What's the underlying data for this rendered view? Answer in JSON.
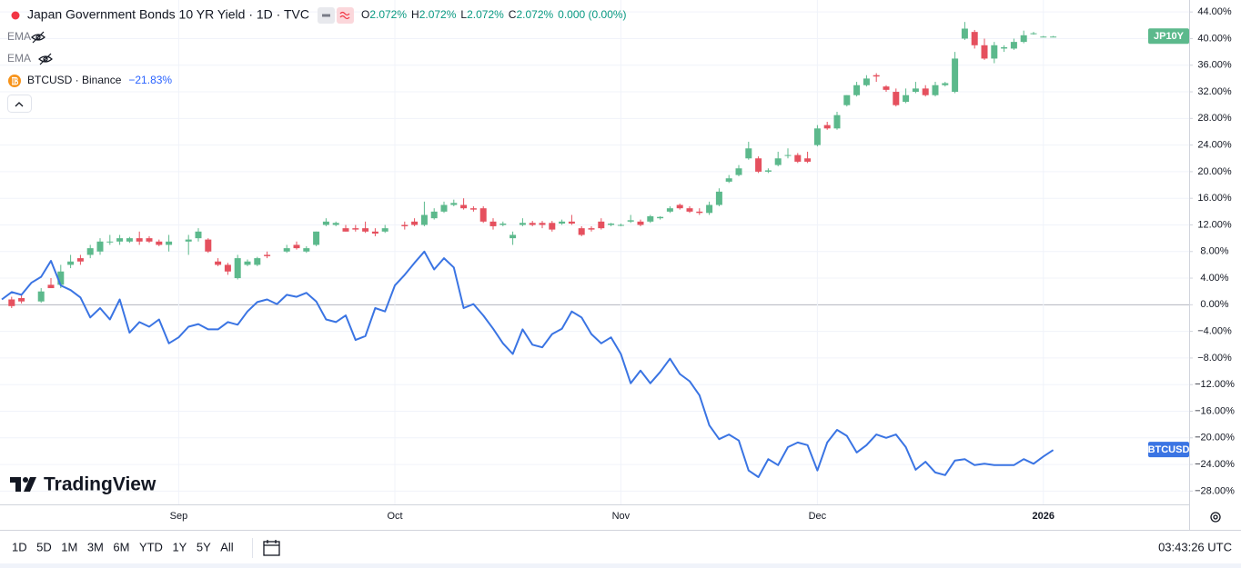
{
  "header": {
    "title": "Japan Government Bonds 10 YR Yield · 1D · TVC",
    "ohlc": [
      {
        "key": "O",
        "value": "2.072%"
      },
      {
        "key": "H",
        "value": "2.072%"
      },
      {
        "key": "L",
        "value": "2.072%"
      },
      {
        "key": "C",
        "value": "2.072%"
      }
    ],
    "change": "0.000 (0.00%)",
    "indicators": [
      "EMA",
      "EMA"
    ],
    "compare": "BTCUSD · Binance",
    "compare_change": "−21.83%"
  },
  "logo": "TradingView",
  "toolbar": {
    "ranges": [
      "1D",
      "5D",
      "1M",
      "3M",
      "6M",
      "YTD",
      "1Y",
      "5Y",
      "All"
    ],
    "time": "03:43:26 UTC"
  },
  "chart_data": {
    "type": "candlestick",
    "categories": [
      null,
      null,
      null,
      null,
      null,
      null,
      null,
      null,
      null,
      null,
      null,
      null,
      null,
      null,
      null,
      null,
      null,
      null,
      "Sep",
      null,
      null,
      null,
      null,
      null,
      null,
      null,
      null,
      null,
      null,
      null,
      null,
      null,
      null,
      null,
      null,
      null,
      null,
      null,
      null,
      null,
      "Oct",
      null,
      null,
      null,
      null,
      null,
      null,
      null,
      null,
      null,
      null,
      null,
      null,
      null,
      null,
      null,
      null,
      null,
      null,
      null,
      null,
      null,
      null,
      "Nov",
      null,
      null,
      null,
      null,
      null,
      null,
      null,
      null,
      null,
      null,
      null,
      null,
      null,
      null,
      null,
      null,
      null,
      null,
      null,
      "Dec",
      null,
      null,
      null,
      null,
      null,
      null,
      null,
      null,
      null,
      null,
      null,
      null,
      null,
      null,
      null,
      null,
      null,
      null,
      null,
      null,
      null,
      null,
      "2026",
      null
    ],
    "series": [
      {
        "name": "JP10Y",
        "type": "candlestick",
        "up_color": "#5cb98c",
        "down_color": "#e5505e",
        "label_color": "#5cb98c",
        "open": [
          null,
          0.8,
          1,
          null,
          0.5,
          3,
          3,
          6,
          7,
          7.5,
          8,
          9.5,
          9.5,
          9.5,
          10,
          10,
          9.5,
          9,
          null,
          9.5,
          10,
          9.8,
          6.5,
          6,
          4,
          6,
          6,
          7.5,
          null,
          8,
          9,
          8,
          9,
          12,
          12,
          11.5,
          11.5,
          11.5,
          11,
          11,
          null,
          12,
          12.5,
          12,
          13,
          14,
          15,
          15,
          14.5,
          14.5,
          12.5,
          12,
          10,
          12,
          12.3,
          12.3,
          12.3,
          12.2,
          12.5,
          11.5,
          11.5,
          12.5,
          12,
          12,
          12.5,
          12.5,
          12.5,
          13,
          14,
          15,
          14.5,
          14,
          13.8,
          15,
          18.5,
          19.5,
          22,
          22,
          20,
          21,
          22.5,
          22.5,
          22,
          24,
          27,
          26.5,
          30,
          31.5,
          33,
          34.5,
          32.8,
          32,
          30.5,
          32,
          32.5,
          31.5,
          33,
          32,
          40,
          41,
          39,
          37,
          38.5,
          38.5,
          39.5,
          40.8,
          40.3,
          40.3
        ],
        "high": [
          null,
          1.2,
          1.5,
          null,
          2.5,
          4,
          6,
          7.5,
          7.5,
          9,
          10,
          10.5,
          10.5,
          10.2,
          11,
          10.3,
          9.8,
          10.5,
          null,
          10.5,
          11.5,
          10,
          7,
          6.3,
          7.5,
          6.8,
          7.2,
          8,
          null,
          9,
          9.5,
          8.8,
          11,
          13,
          12.5,
          12,
          12,
          12.5,
          11.5,
          12,
          null,
          12.5,
          13,
          15.5,
          14.5,
          15.5,
          15.8,
          16,
          14.8,
          14.8,
          13,
          12.5,
          11,
          13,
          12.6,
          12.6,
          12.6,
          12.8,
          13.5,
          11.8,
          11.8,
          13,
          12.3,
          12.2,
          13.5,
          12.8,
          13.5,
          13.3,
          14.8,
          15.2,
          14.8,
          14.5,
          15.5,
          17.5,
          19.5,
          21,
          24.5,
          22.3,
          20.5,
          23,
          23.5,
          22.8,
          23,
          27,
          27.5,
          29,
          31.5,
          33.5,
          34.5,
          34.8,
          33,
          32.5,
          32.5,
          33.5,
          33,
          33.5,
          33.5,
          38,
          42.5,
          41.3,
          40,
          39.5,
          39,
          40,
          41.2,
          41,
          40.4,
          40.4
        ],
        "low": [
          null,
          -0.5,
          0.2,
          null,
          0.3,
          2.5,
          2.5,
          5.5,
          6,
          7,
          7.5,
          9,
          9,
          9.3,
          9,
          9.3,
          8.8,
          8,
          null,
          7.5,
          9.5,
          7.8,
          5.8,
          4.5,
          3.8,
          5.8,
          5.8,
          7,
          null,
          7.8,
          8.3,
          7.8,
          8.8,
          11.8,
          11.8,
          11,
          11,
          10.8,
          10.3,
          10.8,
          null,
          11.3,
          11.8,
          11.8,
          12.8,
          13.8,
          14.8,
          14.3,
          14,
          12.3,
          11.3,
          11.8,
          9,
          11.8,
          11.8,
          11.5,
          11,
          12,
          12,
          10.3,
          11,
          11.3,
          11.8,
          11.8,
          12.3,
          11.8,
          12.3,
          12.8,
          13.8,
          14.3,
          13.8,
          13.5,
          13.5,
          14.8,
          18.3,
          19.3,
          21.8,
          19.8,
          19.8,
          20.8,
          22,
          21.3,
          21.3,
          23.8,
          26.3,
          26.3,
          29.8,
          31.3,
          32.8,
          33.5,
          32,
          29.8,
          30.3,
          31.8,
          31.3,
          31.3,
          32.8,
          31.8,
          39.8,
          38.5,
          36.8,
          36.3,
          38,
          38.3,
          39.3,
          40.6,
          40.2,
          40.2
        ],
        "close": [
          null,
          -0.2,
          0.5,
          null,
          2,
          2.5,
          5,
          6.5,
          6.5,
          8.5,
          9.5,
          9.5,
          10,
          10,
          9.5,
          9.5,
          9,
          9.5,
          null,
          9.8,
          11,
          8,
          6,
          5,
          7,
          6.5,
          7,
          7.3,
          null,
          8.5,
          8.5,
          8.5,
          11,
          12.5,
          12.3,
          11,
          11.3,
          11,
          10.7,
          11.5,
          null,
          11.8,
          12,
          13.5,
          14,
          15,
          15.3,
          14.5,
          14.3,
          12.5,
          11.8,
          12.2,
          10.5,
          12.3,
          12,
          12,
          11.3,
          12.5,
          12.2,
          10.5,
          11.3,
          11.5,
          12.2,
          12,
          12.7,
          12,
          13.3,
          13.2,
          14.5,
          14.5,
          14,
          13.8,
          15,
          17,
          19,
          20.5,
          23.5,
          20,
          20.2,
          22,
          22.5,
          21.5,
          21.5,
          26.5,
          26.5,
          28.5,
          31.5,
          33,
          34,
          34.3,
          32.3,
          30,
          31.5,
          32.5,
          31.5,
          33,
          33.3,
          37,
          41.5,
          39,
          37,
          39,
          38.7,
          39.5,
          40.5,
          40.8,
          40.3,
          40.3
        ]
      },
      {
        "name": "BTCUSD",
        "type": "line",
        "color": "#3a74e3",
        "values": [
          0.8,
          1.9,
          1.5,
          3.3,
          4.2,
          6.6,
          2.9,
          2.2,
          1.1,
          -1.9,
          -0.5,
          -2.2,
          0.8,
          -4.2,
          -2.6,
          -3.3,
          -2.2,
          -5.8,
          -4.9,
          -3.3,
          -2.9,
          -3.7,
          -3.7,
          -2.6,
          -3.0,
          -1.0,
          0.4,
          0.8,
          0.1,
          1.5,
          1.2,
          1.8,
          0.5,
          -2.2,
          -2.6,
          -1.6,
          -5.3,
          -4.7,
          -0.5,
          -1.0,
          2.9,
          4.5,
          6.3,
          8.0,
          5.3,
          7.0,
          5.6,
          -0.5,
          0.1,
          -1.6,
          -3.6,
          -5.8,
          -7.4,
          -3.7,
          -6.0,
          -6.4,
          -4.4,
          -3.6,
          -1.0,
          -1.9,
          -4.4,
          -5.8,
          -4.9,
          -7.4,
          -11.8,
          -9.9,
          -11.8,
          -10.1,
          -8.1,
          -10.4,
          -11.5,
          -13.6,
          -18.1,
          -20.2,
          -19.5,
          -20.4,
          -24.9,
          -25.9,
          -23.2,
          -24.1,
          -21.4,
          -20.7,
          -21.1,
          -24.9,
          -20.7,
          -18.8,
          -19.7,
          -22.2,
          -21.1,
          -19.5,
          -20.0,
          -19.5,
          -21.4,
          -24.8,
          -23.6,
          -25.2,
          -25.6,
          -23.4,
          -23.2,
          -24.1,
          -23.9,
          -24.1,
          -24.1,
          -24.1,
          -23.2,
          -23.9,
          -22.8,
          -21.83
        ]
      }
    ],
    "ylim": [
      -30,
      45.8
    ],
    "yticks": [
      {
        "value": -28,
        "label": "−28.00%"
      },
      {
        "value": -24,
        "label": "−24.00%"
      },
      {
        "value": -20,
        "label": "−20.00%"
      },
      {
        "value": -16,
        "label": "−16.00%"
      },
      {
        "value": -12,
        "label": "−12.00%"
      },
      {
        "value": -8,
        "label": "−8.00%"
      },
      {
        "value": -4,
        "label": "−4.00%"
      },
      {
        "value": 0,
        "label": "0.00%"
      },
      {
        "value": 4,
        "label": "4.00%"
      },
      {
        "value": 8,
        "label": "8.00%"
      },
      {
        "value": 12,
        "label": "12.00%"
      },
      {
        "value": 16,
        "label": "16.00%"
      },
      {
        "value": 20,
        "label": "20.00%"
      },
      {
        "value": 24,
        "label": "24.00%"
      },
      {
        "value": 28,
        "label": "28.00%"
      },
      {
        "value": 32,
        "label": "32.00%"
      },
      {
        "value": 36,
        "label": "36.00%"
      },
      {
        "value": 40,
        "label": "40.00%"
      },
      {
        "value": 44,
        "label": "44.00%"
      }
    ],
    "grid": true
  }
}
